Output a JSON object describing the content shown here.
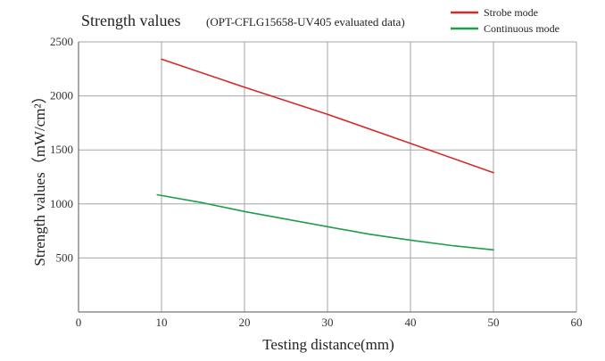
{
  "chart_data": {
    "type": "line",
    "title": "Strength values",
    "subtitle": "(OPT-CFLG15658-UV405 evaluated data)",
    "xlabel": "Testing distance(mm)",
    "ylabel": "Strength values（mW/cm²）",
    "xlim": [
      0,
      60
    ],
    "ylim": [
      0,
      2500
    ],
    "x_ticks": [
      "0",
      "10",
      "20",
      "30",
      "40",
      "50",
      "60"
    ],
    "y_ticks": [
      "500",
      "1000",
      "1500",
      "2000",
      "2500"
    ],
    "grid": true,
    "legend_position": "top-right",
    "series": [
      {
        "name": "Strobe mode",
        "color": "#d42a2a",
        "points": [
          [
            10,
            2340
          ],
          [
            20,
            2080
          ],
          [
            30,
            1830
          ],
          [
            40,
            1560
          ],
          [
            50,
            1290
          ]
        ]
      },
      {
        "name": "Continuous mode",
        "color": "#1e9e4a",
        "points": [
          [
            9.5,
            1085
          ],
          [
            15,
            1010
          ],
          [
            20,
            930
          ],
          [
            25,
            860
          ],
          [
            30,
            790
          ],
          [
            35,
            720
          ],
          [
            40,
            665
          ],
          [
            45,
            615
          ],
          [
            50,
            575
          ]
        ]
      }
    ]
  }
}
